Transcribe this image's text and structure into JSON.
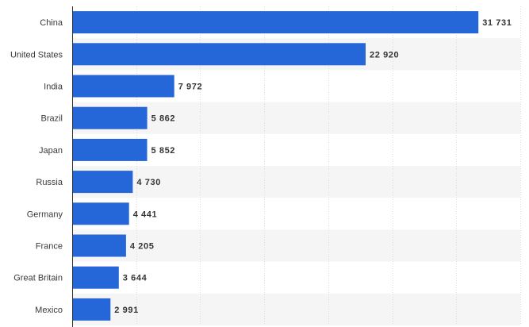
{
  "chart_data": {
    "type": "bar",
    "orientation": "horizontal",
    "title": "",
    "xlabel": "",
    "ylabel": "",
    "categories": [
      "China",
      "United States",
      "India",
      "Brazil",
      "Japan",
      "Russia",
      "Germany",
      "France",
      "Great Britain",
      "Mexico"
    ],
    "values": [
      31731,
      22920,
      7972,
      5862,
      5852,
      4730,
      4441,
      4205,
      3644,
      2991
    ],
    "value_labels": [
      "31 731",
      "22 920",
      "7 972",
      "5 862",
      "5 852",
      "4 730",
      "4 441",
      "4 205",
      "3 644",
      "2 991"
    ],
    "xlim": [
      0,
      35000
    ],
    "grid": "vertical",
    "alternating_row_bands": true,
    "colors": {
      "bar": "#2566d8",
      "band": "#f5f5f5",
      "grid": "#dcdcdc",
      "axis": "#333333"
    }
  }
}
